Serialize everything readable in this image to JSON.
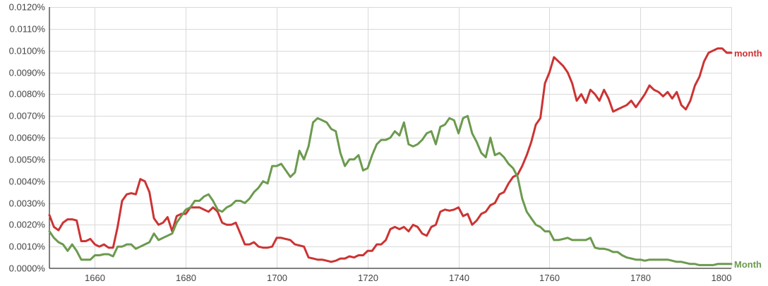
{
  "chart_data": {
    "type": "line",
    "title": "",
    "xlabel": "",
    "ylabel": "",
    "xlim": [
      1650,
      1800
    ],
    "ylim": [
      0,
      0.012
    ],
    "x_ticks": [
      1660,
      1680,
      1700,
      1720,
      1740,
      1760,
      1780,
      1800
    ],
    "x_tick_labels": [
      "1660",
      "1680",
      "1700",
      "1720",
      "1740",
      "1760",
      "1780",
      "1800"
    ],
    "y_ticks": [
      0,
      0.001,
      0.002,
      0.003,
      0.004,
      0.005,
      0.006,
      0.007,
      0.008,
      0.009,
      0.01,
      0.011,
      0.012
    ],
    "y_tick_labels": [
      "0.0000%",
      "0.0010%",
      "0.0020%",
      "0.0030%",
      "0.0040%",
      "0.0050%",
      "0.0060%",
      "0.0070%",
      "0.0080%",
      "0.0090%",
      "0.0100%",
      "0.0110%",
      "0.0120%"
    ],
    "grid": true,
    "legend": "series labels at right end of lines",
    "series": [
      {
        "name": "month",
        "color": "#cc3333",
        "points": [
          [
            1650,
            0.00245
          ],
          [
            1651,
            0.0019
          ],
          [
            1652,
            0.00175
          ],
          [
            1653,
            0.0021
          ],
          [
            1654,
            0.00225
          ],
          [
            1655,
            0.00225
          ],
          [
            1656,
            0.0022
          ],
          [
            1657,
            0.00125
          ],
          [
            1658,
            0.00125
          ],
          [
            1659,
            0.00135
          ],
          [
            1660,
            0.0011
          ],
          [
            1661,
            0.001
          ],
          [
            1662,
            0.0011
          ],
          [
            1663,
            0.00095
          ],
          [
            1664,
            0.00095
          ],
          [
            1665,
            0.0019
          ],
          [
            1666,
            0.0031
          ],
          [
            1667,
            0.0034
          ],
          [
            1668,
            0.00345
          ],
          [
            1669,
            0.0034
          ],
          [
            1670,
            0.0041
          ],
          [
            1671,
            0.004
          ],
          [
            1672,
            0.0035
          ],
          [
            1673,
            0.0023
          ],
          [
            1674,
            0.002
          ],
          [
            1675,
            0.0021
          ],
          [
            1676,
            0.00235
          ],
          [
            1677,
            0.0017
          ],
          [
            1678,
            0.0024
          ],
          [
            1679,
            0.0025
          ],
          [
            1680,
            0.0025
          ],
          [
            1681,
            0.0028
          ],
          [
            1682,
            0.0028
          ],
          [
            1683,
            0.0028
          ],
          [
            1684,
            0.0027
          ],
          [
            1685,
            0.0026
          ],
          [
            1686,
            0.0028
          ],
          [
            1687,
            0.0026
          ],
          [
            1688,
            0.0021
          ],
          [
            1689,
            0.002
          ],
          [
            1690,
            0.002
          ],
          [
            1691,
            0.0021
          ],
          [
            1692,
            0.0016
          ],
          [
            1693,
            0.0011
          ],
          [
            1694,
            0.0011
          ],
          [
            1695,
            0.0012
          ],
          [
            1696,
            0.001
          ],
          [
            1697,
            0.00095
          ],
          [
            1698,
            0.00095
          ],
          [
            1699,
            0.001
          ],
          [
            1700,
            0.0014
          ],
          [
            1701,
            0.0014
          ],
          [
            1702,
            0.00135
          ],
          [
            1703,
            0.0013
          ],
          [
            1704,
            0.0011
          ],
          [
            1705,
            0.00105
          ],
          [
            1706,
            0.001
          ],
          [
            1707,
            0.0005
          ],
          [
            1708,
            0.00045
          ],
          [
            1709,
            0.0004
          ],
          [
            1710,
            0.0004
          ],
          [
            1711,
            0.00035
          ],
          [
            1712,
            0.0003
          ],
          [
            1713,
            0.00035
          ],
          [
            1714,
            0.00045
          ],
          [
            1715,
            0.00045
          ],
          [
            1716,
            0.00055
          ],
          [
            1717,
            0.0005
          ],
          [
            1718,
            0.0006
          ],
          [
            1719,
            0.0006
          ],
          [
            1720,
            0.0008
          ],
          [
            1721,
            0.0008
          ],
          [
            1722,
            0.0011
          ],
          [
            1723,
            0.0011
          ],
          [
            1724,
            0.0013
          ],
          [
            1725,
            0.0018
          ],
          [
            1726,
            0.0019
          ],
          [
            1727,
            0.0018
          ],
          [
            1728,
            0.0019
          ],
          [
            1729,
            0.0017
          ],
          [
            1730,
            0.002
          ],
          [
            1731,
            0.0019
          ],
          [
            1732,
            0.0016
          ],
          [
            1733,
            0.0015
          ],
          [
            1734,
            0.0019
          ],
          [
            1735,
            0.002
          ],
          [
            1736,
            0.0026
          ],
          [
            1737,
            0.0027
          ],
          [
            1738,
            0.00265
          ],
          [
            1739,
            0.0027
          ],
          [
            1740,
            0.0028
          ],
          [
            1741,
            0.0024
          ],
          [
            1742,
            0.0025
          ],
          [
            1743,
            0.002
          ],
          [
            1744,
            0.0022
          ],
          [
            1745,
            0.0025
          ],
          [
            1746,
            0.0026
          ],
          [
            1747,
            0.0029
          ],
          [
            1748,
            0.003
          ],
          [
            1749,
            0.0034
          ],
          [
            1750,
            0.0035
          ],
          [
            1751,
            0.0039
          ],
          [
            1752,
            0.0042
          ],
          [
            1753,
            0.0043
          ],
          [
            1754,
            0.0047
          ],
          [
            1755,
            0.0052
          ],
          [
            1756,
            0.0058
          ],
          [
            1757,
            0.0066
          ],
          [
            1758,
            0.0069
          ],
          [
            1759,
            0.0085
          ],
          [
            1760,
            0.009
          ],
          [
            1761,
            0.0097
          ],
          [
            1762,
            0.0095
          ],
          [
            1763,
            0.0093
          ],
          [
            1764,
            0.009
          ],
          [
            1765,
            0.0085
          ],
          [
            1766,
            0.0077
          ],
          [
            1767,
            0.008
          ],
          [
            1768,
            0.0076
          ],
          [
            1769,
            0.0082
          ],
          [
            1770,
            0.008
          ],
          [
            1771,
            0.0077
          ],
          [
            1772,
            0.0082
          ],
          [
            1773,
            0.0078
          ],
          [
            1774,
            0.0072
          ],
          [
            1775,
            0.0073
          ],
          [
            1776,
            0.0074
          ],
          [
            1777,
            0.0075
          ],
          [
            1778,
            0.0077
          ],
          [
            1779,
            0.0074
          ],
          [
            1780,
            0.0077
          ],
          [
            1781,
            0.008
          ],
          [
            1782,
            0.0084
          ],
          [
            1783,
            0.0082
          ],
          [
            1784,
            0.0081
          ],
          [
            1785,
            0.0079
          ],
          [
            1786,
            0.0081
          ],
          [
            1787,
            0.0078
          ],
          [
            1788,
            0.0081
          ],
          [
            1789,
            0.0075
          ],
          [
            1790,
            0.0073
          ],
          [
            1791,
            0.0077
          ],
          [
            1792,
            0.0084
          ],
          [
            1793,
            0.0088
          ],
          [
            1794,
            0.0095
          ],
          [
            1795,
            0.0099
          ],
          [
            1796,
            0.01
          ],
          [
            1797,
            0.0101
          ],
          [
            1798,
            0.0101
          ],
          [
            1799,
            0.0099
          ],
          [
            1800,
            0.0099
          ]
        ]
      },
      {
        "name": "Month",
        "color": "#6b9a4e",
        "points": [
          [
            1650,
            0.0017
          ],
          [
            1651,
            0.0014
          ],
          [
            1652,
            0.0012
          ],
          [
            1653,
            0.0011
          ],
          [
            1654,
            0.0008
          ],
          [
            1655,
            0.0011
          ],
          [
            1656,
            0.0008
          ],
          [
            1657,
            0.0004
          ],
          [
            1658,
            0.0004
          ],
          [
            1659,
            0.0004
          ],
          [
            1660,
            0.0006
          ],
          [
            1661,
            0.0006
          ],
          [
            1662,
            0.00065
          ],
          [
            1663,
            0.00065
          ],
          [
            1664,
            0.00055
          ],
          [
            1665,
            0.001
          ],
          [
            1666,
            0.001
          ],
          [
            1667,
            0.0011
          ],
          [
            1668,
            0.0011
          ],
          [
            1669,
            0.0009
          ],
          [
            1670,
            0.001
          ],
          [
            1671,
            0.0011
          ],
          [
            1672,
            0.0012
          ],
          [
            1673,
            0.0016
          ],
          [
            1674,
            0.0013
          ],
          [
            1675,
            0.0014
          ],
          [
            1676,
            0.0015
          ],
          [
            1677,
            0.0016
          ],
          [
            1678,
            0.0021
          ],
          [
            1679,
            0.0024
          ],
          [
            1680,
            0.0027
          ],
          [
            1681,
            0.0028
          ],
          [
            1682,
            0.0031
          ],
          [
            1683,
            0.0031
          ],
          [
            1684,
            0.0033
          ],
          [
            1685,
            0.0034
          ],
          [
            1686,
            0.0031
          ],
          [
            1687,
            0.0027
          ],
          [
            1688,
            0.0026
          ],
          [
            1689,
            0.0028
          ],
          [
            1690,
            0.0029
          ],
          [
            1691,
            0.0031
          ],
          [
            1692,
            0.0031
          ],
          [
            1693,
            0.003
          ],
          [
            1694,
            0.0032
          ],
          [
            1695,
            0.0035
          ],
          [
            1696,
            0.0037
          ],
          [
            1697,
            0.004
          ],
          [
            1698,
            0.0039
          ],
          [
            1699,
            0.0047
          ],
          [
            1700,
            0.0047
          ],
          [
            1701,
            0.0048
          ],
          [
            1702,
            0.0045
          ],
          [
            1703,
            0.0042
          ],
          [
            1704,
            0.0044
          ],
          [
            1705,
            0.0054
          ],
          [
            1706,
            0.005
          ],
          [
            1707,
            0.0056
          ],
          [
            1708,
            0.0067
          ],
          [
            1709,
            0.0069
          ],
          [
            1710,
            0.0068
          ],
          [
            1711,
            0.0067
          ],
          [
            1712,
            0.0064
          ],
          [
            1713,
            0.0063
          ],
          [
            1714,
            0.0053
          ],
          [
            1715,
            0.0047
          ],
          [
            1716,
            0.005
          ],
          [
            1717,
            0.005
          ],
          [
            1718,
            0.0052
          ],
          [
            1719,
            0.0045
          ],
          [
            1720,
            0.0046
          ],
          [
            1721,
            0.0052
          ],
          [
            1722,
            0.0057
          ],
          [
            1723,
            0.0059
          ],
          [
            1724,
            0.0059
          ],
          [
            1725,
            0.006
          ],
          [
            1726,
            0.0063
          ],
          [
            1727,
            0.0061
          ],
          [
            1728,
            0.0067
          ],
          [
            1729,
            0.0057
          ],
          [
            1730,
            0.0056
          ],
          [
            1731,
            0.0057
          ],
          [
            1732,
            0.0059
          ],
          [
            1733,
            0.0062
          ],
          [
            1734,
            0.0063
          ],
          [
            1735,
            0.0057
          ],
          [
            1736,
            0.0065
          ],
          [
            1737,
            0.0066
          ],
          [
            1738,
            0.0069
          ],
          [
            1739,
            0.0068
          ],
          [
            1740,
            0.0062
          ],
          [
            1741,
            0.0069
          ],
          [
            1742,
            0.007
          ],
          [
            1743,
            0.0062
          ],
          [
            1744,
            0.0058
          ],
          [
            1745,
            0.0053
          ],
          [
            1746,
            0.0051
          ],
          [
            1747,
            0.006
          ],
          [
            1748,
            0.0052
          ],
          [
            1749,
            0.0053
          ],
          [
            1750,
            0.0051
          ],
          [
            1751,
            0.0048
          ],
          [
            1752,
            0.0046
          ],
          [
            1753,
            0.0042
          ],
          [
            1754,
            0.0032
          ],
          [
            1755,
            0.0026
          ],
          [
            1756,
            0.0023
          ],
          [
            1757,
            0.002
          ],
          [
            1758,
            0.0019
          ],
          [
            1759,
            0.0017
          ],
          [
            1760,
            0.0017
          ],
          [
            1761,
            0.0013
          ],
          [
            1762,
            0.0013
          ],
          [
            1763,
            0.00135
          ],
          [
            1764,
            0.0014
          ],
          [
            1765,
            0.0013
          ],
          [
            1766,
            0.0013
          ],
          [
            1767,
            0.0013
          ],
          [
            1768,
            0.0013
          ],
          [
            1769,
            0.0014
          ],
          [
            1770,
            0.00095
          ],
          [
            1771,
            0.0009
          ],
          [
            1772,
            0.0009
          ],
          [
            1773,
            0.00085
          ],
          [
            1774,
            0.00075
          ],
          [
            1775,
            0.00075
          ],
          [
            1776,
            0.0006
          ],
          [
            1777,
            0.0005
          ],
          [
            1778,
            0.00045
          ],
          [
            1779,
            0.0004
          ],
          [
            1780,
            0.0004
          ],
          [
            1781,
            0.00035
          ],
          [
            1782,
            0.0004
          ],
          [
            1783,
            0.0004
          ],
          [
            1784,
            0.0004
          ],
          [
            1785,
            0.0004
          ],
          [
            1786,
            0.0004
          ],
          [
            1787,
            0.00035
          ],
          [
            1788,
            0.0003
          ],
          [
            1789,
            0.0003
          ],
          [
            1790,
            0.00025
          ],
          [
            1791,
            0.0002
          ],
          [
            1792,
            0.0002
          ],
          [
            1793,
            0.00015
          ],
          [
            1794,
            0.00015
          ],
          [
            1795,
            0.00015
          ],
          [
            1796,
            0.00015
          ],
          [
            1797,
            0.0002
          ],
          [
            1798,
            0.0002
          ],
          [
            1799,
            0.0002
          ],
          [
            1800,
            0.0002
          ]
        ]
      }
    ]
  }
}
